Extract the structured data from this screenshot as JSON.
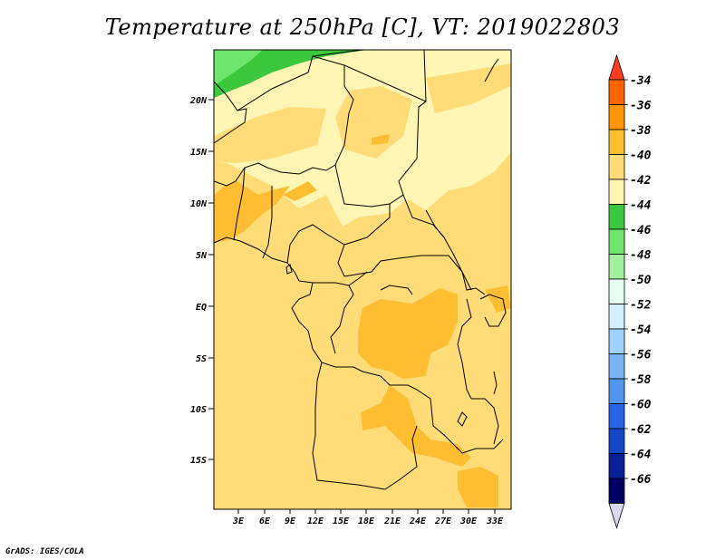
{
  "title": "Temperature at 250hPa [C], VT: 2019022803",
  "credit": "GrADS: IGES/COLA",
  "map": {
    "lon_labels": [
      "3E",
      "6E",
      "9E",
      "12E",
      "15E",
      "18E",
      "21E",
      "24E",
      "27E",
      "30E",
      "33E"
    ],
    "lat_labels": [
      "20N",
      "15N",
      "10N",
      "5N",
      "EQ",
      "5S",
      "10S",
      "15S"
    ]
  },
  "colorbar": {
    "labels": [
      "-34",
      "-36",
      "-38",
      "-40",
      "-42",
      "-44",
      "-46",
      "-48",
      "-50",
      "-52",
      "-54",
      "-56",
      "-58",
      "-60",
      "-62",
      "-64",
      "-66"
    ],
    "colors": [
      "#ff3c1e",
      "#ff6400",
      "#ff9600",
      "#ffbe32",
      "#ffdc78",
      "#fff5b4",
      "#3cc83c",
      "#6ee66e",
      "#a0f0a0",
      "#e6fff0",
      "#d2f0ff",
      "#a0d2ff",
      "#78b4f5",
      "#5096f0",
      "#2864e6",
      "#1446c8",
      "#0a1e96",
      "#000064",
      "#d8d8f0"
    ]
  }
}
